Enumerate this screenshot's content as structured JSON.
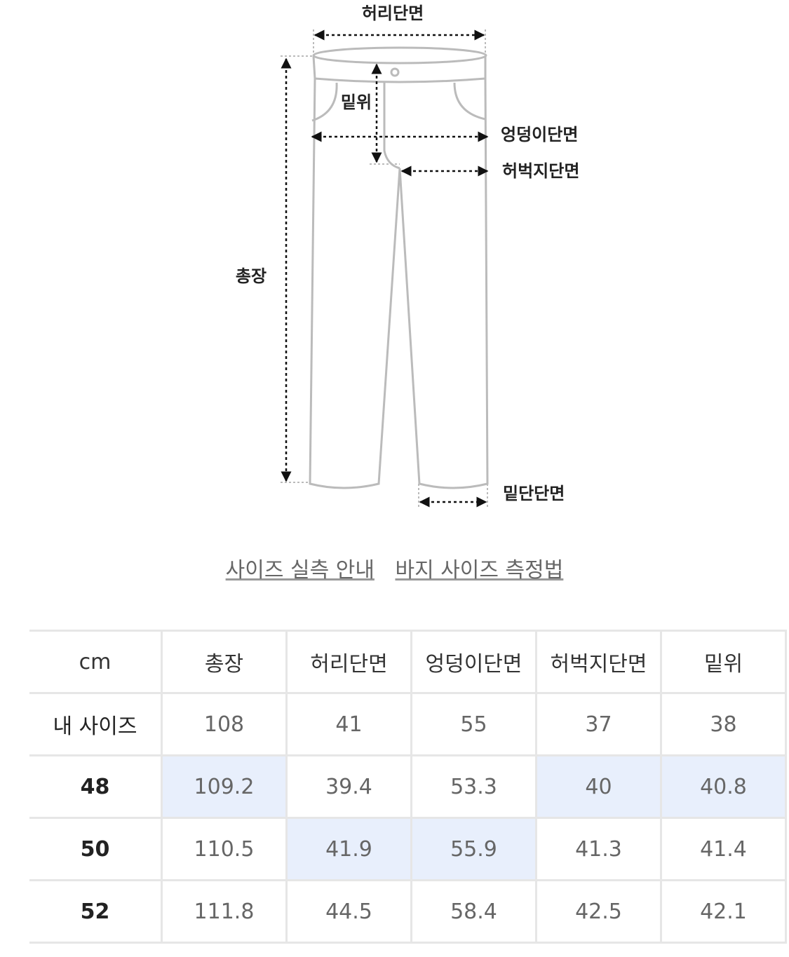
{
  "diagram": {
    "labels": {
      "waist": "허리단면",
      "rise": "밑위",
      "hip": "엉덩이단면",
      "thigh": "허벅지단면",
      "length": "총장",
      "hem": "밑단단면"
    }
  },
  "links": [
    "사이즈 실측 안내",
    "바지 사이즈 측정법"
  ],
  "table": {
    "header": [
      "cm",
      "총장",
      "허리단면",
      "엉덩이단면",
      "허벅지단면",
      "밑위"
    ],
    "rows": [
      [
        "내 사이즈",
        108,
        41,
        55,
        37,
        38
      ],
      [
        "48",
        109.2,
        39.4,
        53.3,
        40,
        40.8
      ],
      [
        "50",
        110.5,
        41.9,
        55.9,
        41.3,
        41.4
      ],
      [
        "52",
        111.8,
        44.5,
        58.4,
        42.5,
        42.1
      ]
    ],
    "highlight_color": "#e8effc",
    "highlighted": [
      [],
      [
        1,
        4,
        5
      ],
      [
        2,
        3
      ],
      []
    ]
  }
}
